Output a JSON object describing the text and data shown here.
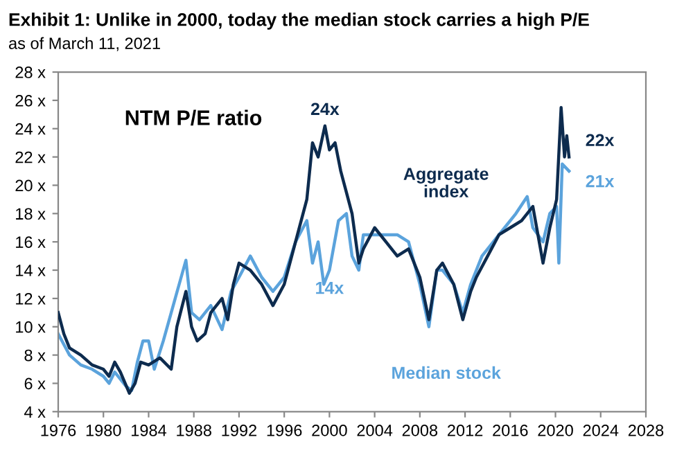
{
  "chart_data": {
    "type": "line",
    "title": "Exhibit 1: Unlike in 2000, today the median stock carries a high P/E",
    "subtitle": "as of March 11, 2021",
    "annotations": [
      "NTM P/E ratio",
      {
        "text": "24x",
        "x": 1999.6,
        "y": 24.2
      },
      {
        "text": "14x",
        "x": 2000,
        "y": 14
      },
      {
        "text": "22x",
        "x": 2021.2,
        "y": 22
      },
      {
        "text": "21x",
        "x": 2021.2,
        "y": 21
      }
    ],
    "xlim": [
      1976,
      2028
    ],
    "xticks": [
      1976,
      1980,
      1984,
      1988,
      1992,
      1996,
      2000,
      2004,
      2008,
      2012,
      2016,
      2020,
      2024,
      2028
    ],
    "ylim": [
      4,
      28
    ],
    "yticks": [
      {
        "value": 4,
        "label": "4 x"
      },
      {
        "value": 6,
        "label": "6 x"
      },
      {
        "value": 8,
        "label": "8 x"
      },
      {
        "value": 10,
        "label": "10 x"
      },
      {
        "value": 12,
        "label": "12 x"
      },
      {
        "value": 14,
        "label": "14 x"
      },
      {
        "value": 16,
        "label": "16 x"
      },
      {
        "value": 18,
        "label": "18 x"
      },
      {
        "value": 20,
        "label": "20 x"
      },
      {
        "value": 22,
        "label": "22 x"
      },
      {
        "value": 24,
        "label": "24 x"
      },
      {
        "value": 26,
        "label": "26 x"
      },
      {
        "value": 28,
        "label": "28 x"
      }
    ],
    "grid": false,
    "legend": false,
    "series": [
      {
        "name": "Median stock",
        "color": "#5ba3dc",
        "x": [
          1976,
          1977,
          1978,
          1979,
          1980,
          1980.5,
          1981,
          1982,
          1982.5,
          1983,
          1983.5,
          1984,
          1984.5,
          1985.3,
          1986,
          1987.3,
          1987.8,
          1988.5,
          1989.5,
          1990.5,
          1991.3,
          1992,
          1993,
          1994,
          1995,
          1996,
          1997,
          1998,
          1998.5,
          1999,
          1999.5,
          2000,
          2000.8,
          2001.5,
          2002,
          2002.6,
          2003,
          2004,
          2005,
          2006,
          2007,
          2008,
          2008.8,
          2009.5,
          2010,
          2011,
          2011.8,
          2012.5,
          2013.5,
          2014.5,
          2015.5,
          2016.5,
          2017.5,
          2018,
          2018.9,
          2019.5,
          2020.1,
          2020.3,
          2020.6,
          2021.2
        ],
        "values": [
          9.5,
          8,
          7.3,
          7,
          6.5,
          6,
          6.8,
          5.8,
          5.5,
          7.5,
          9,
          9,
          7,
          9,
          11,
          14.7,
          11,
          10.5,
          11.5,
          9.8,
          12.5,
          13.5,
          15,
          13.5,
          12.5,
          13.5,
          16,
          17.5,
          14.5,
          16,
          13,
          14,
          17.5,
          18,
          15,
          14,
          16.5,
          16.5,
          16.5,
          16.5,
          16,
          13,
          10,
          14,
          14,
          13,
          11,
          13,
          15,
          16,
          17,
          18,
          19.2,
          17,
          16,
          18,
          18.5,
          14.5,
          21.5,
          21
        ]
      },
      {
        "name": "Aggregate index",
        "color": "#0d2b4e",
        "x": [
          1976,
          1976.5,
          1977,
          1978,
          1979,
          1980,
          1980.5,
          1981,
          1981.5,
          1982.3,
          1982.8,
          1983.3,
          1984,
          1985,
          1986,
          1986.5,
          1987.3,
          1987.8,
          1988.3,
          1989,
          1989.5,
          1990.5,
          1991,
          1991.5,
          1992,
          1993,
          1994,
          1995,
          1996,
          1997,
          1998,
          1998.5,
          1999,
          1999.6,
          2000,
          2000.5,
          2001,
          2001.5,
          2002,
          2002.6,
          2003,
          2004,
          2005,
          2006,
          2007,
          2008,
          2008.8,
          2009.5,
          2010,
          2011,
          2011.8,
          2012.5,
          2013,
          2014,
          2015,
          2016,
          2017,
          2018,
          2018.9,
          2019.5,
          2020.1,
          2020.5,
          2020.8,
          2021,
          2021.2
        ],
        "values": [
          11,
          9.5,
          8.5,
          8,
          7.3,
          7,
          6.5,
          7.5,
          6.8,
          5.3,
          6,
          7.5,
          7.3,
          7.8,
          7,
          10,
          12.5,
          10,
          9,
          9.5,
          11,
          12,
          10.5,
          13,
          14.5,
          14,
          13,
          11.5,
          13,
          16,
          19,
          23,
          22,
          24.2,
          22.5,
          23,
          21,
          19.5,
          18,
          14.5,
          15.5,
          17,
          16,
          15,
          15.5,
          13.5,
          10.5,
          14,
          14.5,
          13,
          10.5,
          12.5,
          13.5,
          15,
          16.5,
          17,
          17.5,
          18.5,
          14.5,
          17,
          19,
          25.5,
          22,
          23.5,
          22
        ]
      }
    ]
  }
}
